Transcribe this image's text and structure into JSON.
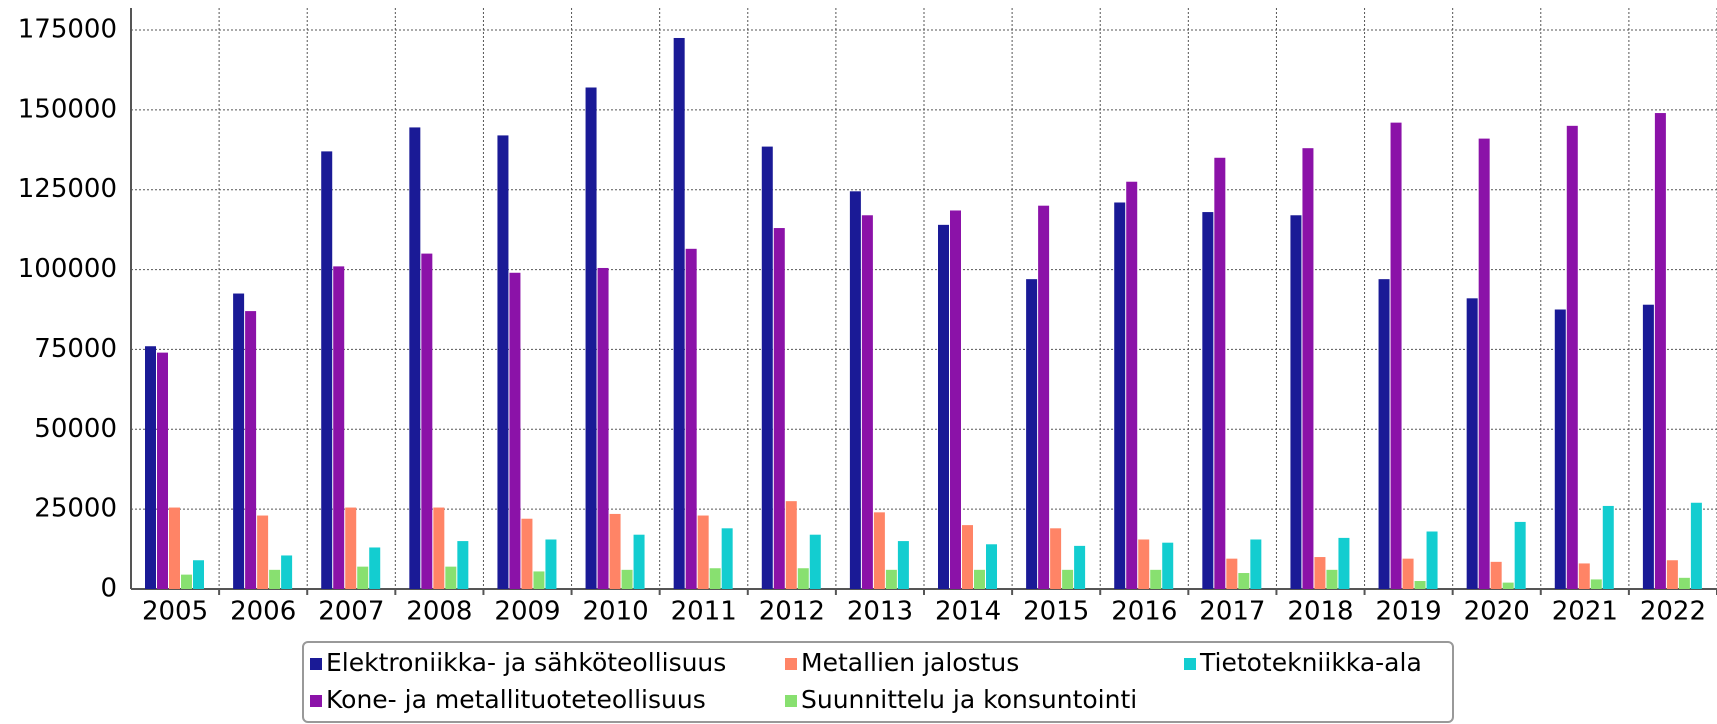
{
  "chart_data": {
    "type": "bar",
    "categories": [
      "2005",
      "2006",
      "2007",
      "2008",
      "2009",
      "2010",
      "2011",
      "2012",
      "2013",
      "2014",
      "2015",
      "2016",
      "2017",
      "2018",
      "2019",
      "2020",
      "2021",
      "2022"
    ],
    "series": [
      {
        "name": "Elektroniikka- ja sähköteollisuus",
        "color": "#1a1a96",
        "values": [
          76000,
          92500,
          137000,
          144500,
          142000,
          157000,
          172500,
          138500,
          124500,
          114000,
          97000,
          121000,
          118000,
          117000,
          97000,
          91000,
          87500,
          89000
        ]
      },
      {
        "name": "Kone- ja metallituoteteollisuus",
        "color": "#8b12a8",
        "values": [
          74000,
          87000,
          101000,
          105000,
          99000,
          100500,
          106500,
          113000,
          117000,
          118500,
          120000,
          127500,
          135000,
          138000,
          146000,
          141000,
          145000,
          149000
        ]
      },
      {
        "name": "Metallien jalostus",
        "color": "#ff8466",
        "values": [
          25500,
          23000,
          25500,
          25500,
          22000,
          23500,
          23000,
          27500,
          24000,
          20000,
          19000,
          15500,
          9500,
          10000,
          9500,
          8500,
          8000,
          9000
        ]
      },
      {
        "name": "Suunnittelu ja konsuntointi",
        "color": "#88e070",
        "values": [
          4500,
          6000,
          7000,
          7000,
          5500,
          6000,
          6500,
          6500,
          6000,
          6000,
          6000,
          6000,
          5000,
          6000,
          2500,
          2000,
          3000,
          3500
        ]
      },
      {
        "name": "Tietotekniikka-ala",
        "color": "#13cdd0",
        "values": [
          9000,
          10500,
          13000,
          15000,
          15500,
          17000,
          19000,
          17000,
          15000,
          14000,
          13500,
          14500,
          15500,
          16000,
          18000,
          21000,
          26000,
          27000
        ]
      }
    ],
    "ylim": [
      0,
      175000
    ],
    "yticks": [
      0,
      25000,
      50000,
      75000,
      100000,
      125000,
      150000,
      175000
    ],
    "grid": true
  }
}
